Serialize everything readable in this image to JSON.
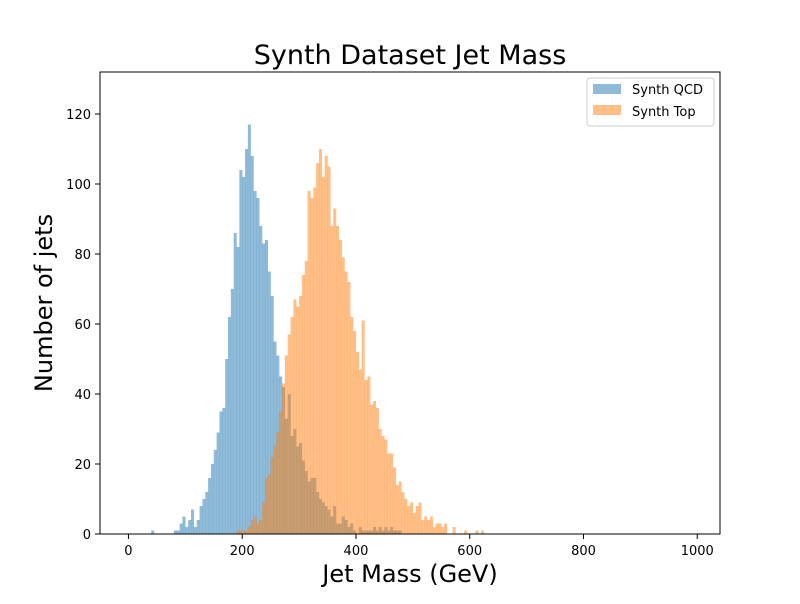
{
  "chart_data": {
    "type": "histogram",
    "title": "Synth Dataset Jet Mass",
    "xlabel": "Jet Mass (GeV)",
    "ylabel": "Number of jets",
    "xlim": [
      -50,
      1040
    ],
    "ylim": [
      0,
      132
    ],
    "bin_width": 5,
    "bins_start": 0,
    "x_ticks": [
      0,
      200,
      400,
      600,
      800,
      1000
    ],
    "y_ticks": [
      0,
      20,
      40,
      60,
      80,
      100,
      120
    ],
    "legend_position": "top-right",
    "grid": false,
    "series": [
      {
        "name": "Synth QCD",
        "color": "#1f77b4",
        "opacity": 0.5,
        "values": [
          0,
          0,
          0,
          0,
          0,
          0,
          0,
          0,
          1,
          0,
          0,
          0,
          0,
          0,
          0,
          0,
          1,
          1,
          3,
          5,
          2,
          4,
          7,
          2,
          4,
          8,
          10,
          12,
          16,
          20,
          24,
          29,
          35,
          36,
          50,
          62,
          70,
          86,
          82,
          104,
          102,
          110,
          117,
          108,
          98,
          96,
          88,
          83,
          84,
          75,
          68,
          55,
          51,
          45,
          42,
          33,
          40,
          28,
          30,
          25,
          26,
          21,
          18,
          15,
          16,
          16,
          12,
          10,
          9,
          8,
          7,
          5,
          8,
          3,
          3,
          5,
          4,
          2,
          3,
          1,
          0,
          2,
          1,
          1,
          1,
          1,
          2,
          1,
          2,
          1,
          2,
          1,
          2,
          1,
          1,
          1,
          0,
          0,
          0,
          0,
          0,
          0,
          0,
          0,
          0,
          0,
          0,
          0,
          0,
          0,
          0,
          0,
          0,
          0,
          0,
          0,
          0,
          0,
          0,
          0,
          0,
          0,
          0,
          0,
          0,
          0,
          0,
          0,
          0,
          0,
          0,
          0,
          0,
          0,
          0,
          0,
          0,
          0,
          0,
          0,
          0,
          0,
          0,
          0,
          0,
          0,
          0,
          0,
          0,
          0,
          0,
          0,
          0,
          0,
          0,
          0,
          0,
          0,
          0,
          0,
          0,
          0,
          0,
          0,
          0,
          0,
          0,
          0,
          0,
          0,
          0,
          0,
          0,
          0,
          0,
          0,
          0,
          0,
          0,
          0,
          0,
          0,
          0,
          0,
          0,
          0,
          0,
          0,
          0,
          0,
          0,
          0,
          0,
          0,
          0,
          0,
          0,
          0,
          0,
          0,
          0,
          0,
          0
        ]
      },
      {
        "name": "Synth Top",
        "color": "#ff7f0e",
        "opacity": 0.5,
        "values": [
          0,
          0,
          0,
          0,
          0,
          0,
          0,
          0,
          0,
          0,
          0,
          0,
          0,
          0,
          0,
          0,
          0,
          0,
          0,
          0,
          0,
          0,
          0,
          0,
          0,
          0,
          0,
          0,
          0,
          0,
          0,
          0,
          0,
          0,
          0,
          0,
          0,
          0,
          1,
          1,
          1,
          1,
          2,
          4,
          5,
          3,
          4,
          9,
          16,
          17,
          22,
          25,
          29,
          35,
          43,
          51,
          57,
          62,
          67,
          65,
          68,
          74,
          78,
          98,
          96,
          99,
          106,
          110,
          102,
          108,
          105,
          88,
          93,
          88,
          84,
          79,
          75,
          72,
          62,
          58,
          52,
          47,
          61,
          44,
          45,
          37,
          38,
          36,
          30,
          28,
          27,
          23,
          23,
          19,
          14,
          15,
          12,
          10,
          8,
          9,
          6,
          8,
          9,
          4,
          5,
          4,
          5,
          2,
          3,
          3,
          2,
          3,
          0,
          0,
          2,
          0,
          0,
          0,
          1,
          0,
          0,
          0,
          1,
          0,
          1,
          0,
          0,
          0,
          0,
          0,
          0,
          0,
          0,
          0,
          0,
          0,
          0,
          0,
          0,
          0,
          0,
          0,
          0,
          0,
          0,
          0,
          0,
          0,
          0,
          0,
          0,
          0,
          0,
          0,
          0,
          0,
          0,
          0,
          0,
          0,
          0,
          0,
          0,
          0,
          0,
          0,
          0,
          0,
          0,
          0,
          0,
          0,
          0,
          0,
          0,
          0,
          0,
          0,
          0,
          0,
          0,
          0,
          0,
          0,
          0,
          0,
          0,
          0,
          0,
          0,
          0,
          0,
          0,
          0,
          0,
          0,
          0,
          0,
          0,
          0,
          0,
          0,
          0,
          0,
          0
        ]
      }
    ]
  }
}
